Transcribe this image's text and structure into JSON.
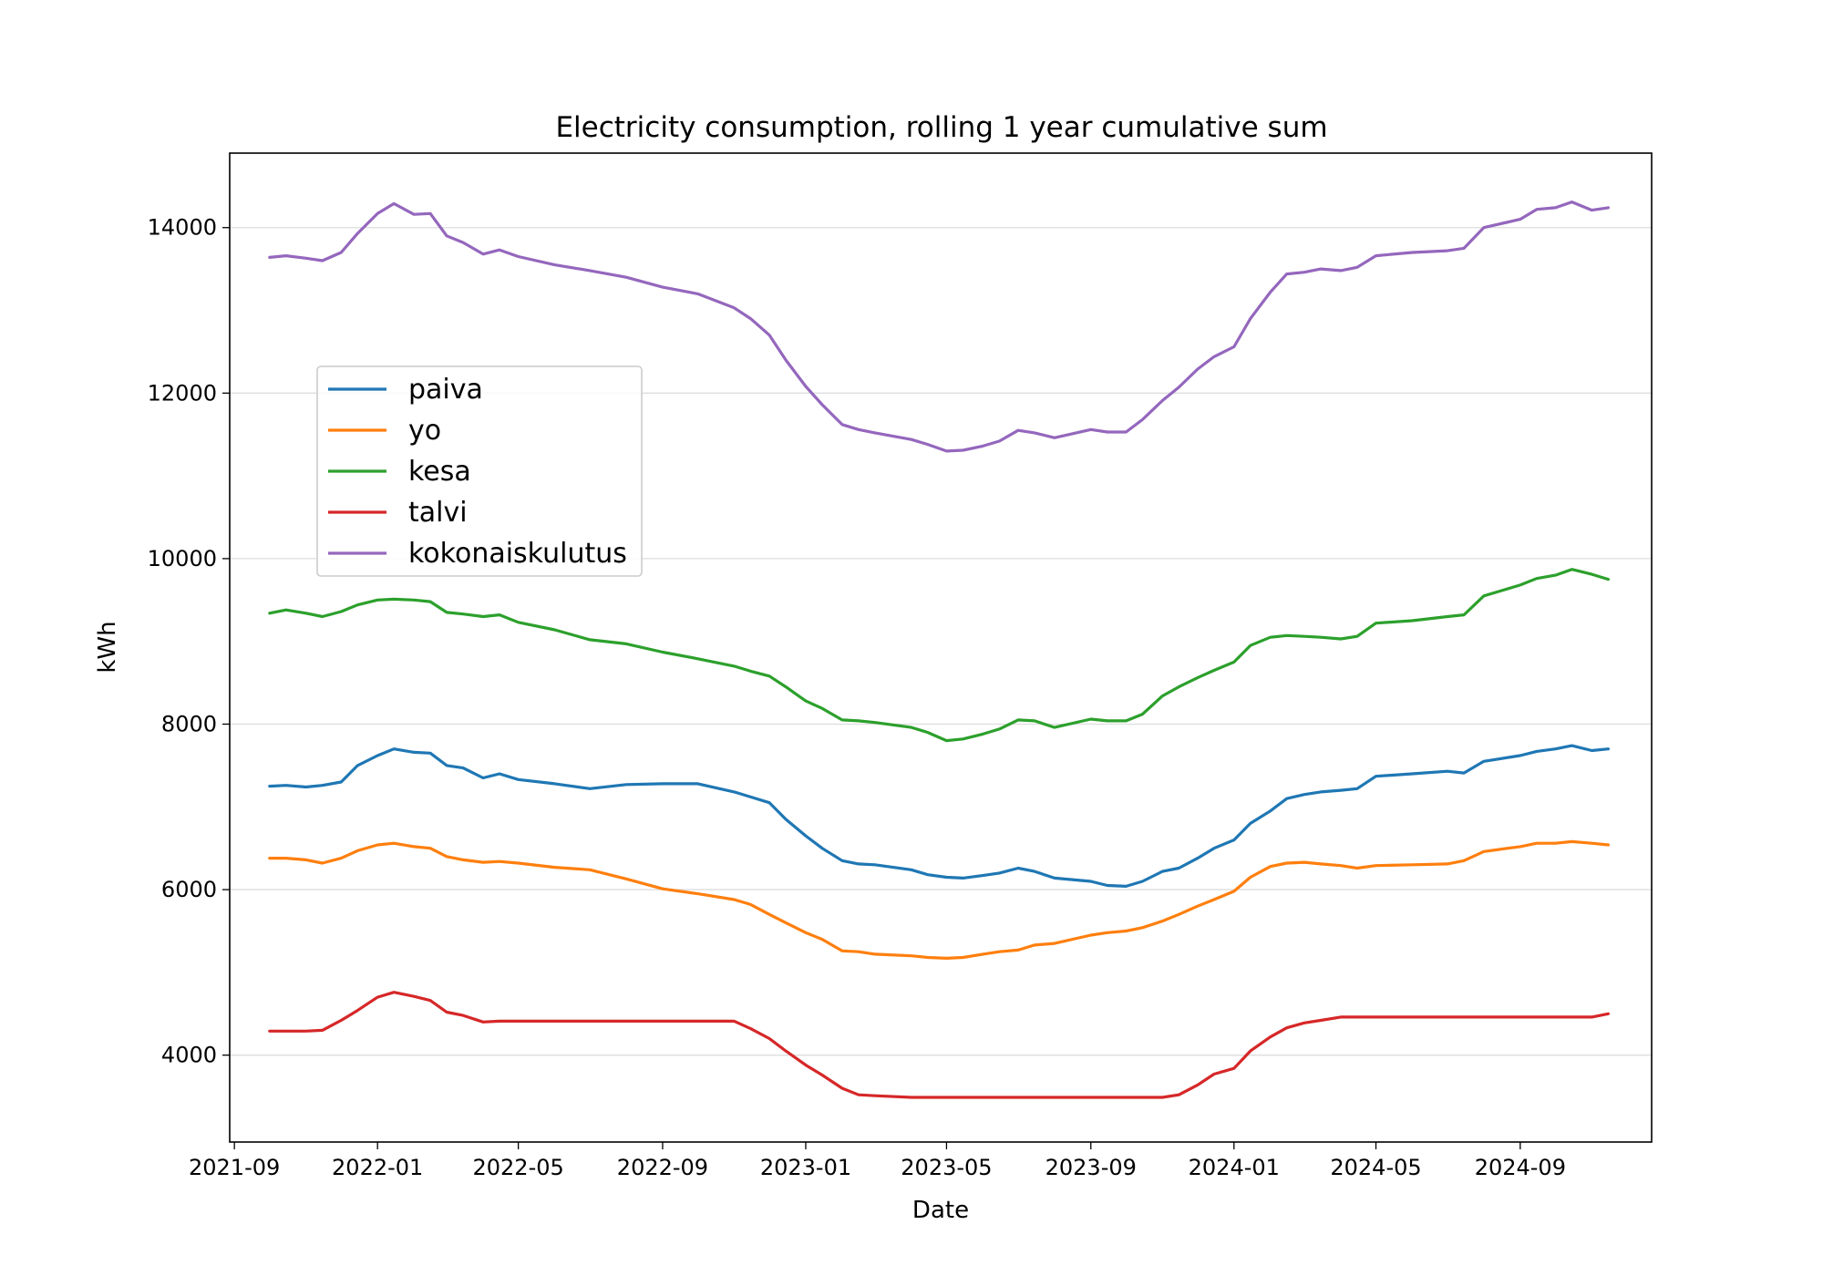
{
  "chart_data": {
    "type": "line",
    "title": "Electricity consumption, rolling 1 year cumulative sum",
    "xlabel": "Date",
    "ylabel": "kWh",
    "x_axis_type": "date",
    "xlim": [
      "2021-08-28",
      "2024-12-22"
    ],
    "ylim": [
      2950,
      14900
    ],
    "x_ticks": [
      "2021-09",
      "2022-01",
      "2022-05",
      "2022-09",
      "2023-01",
      "2023-05",
      "2023-09",
      "2024-01",
      "2024-05",
      "2024-09"
    ],
    "y_ticks": [
      4000,
      6000,
      8000,
      10000,
      12000,
      14000
    ],
    "grid": "horizontal",
    "legend_position": "center-left",
    "x": [
      "2021-10-01",
      "2021-10-15",
      "2021-11-01",
      "2021-11-15",
      "2021-12-01",
      "2021-12-15",
      "2022-01-01",
      "2022-01-15",
      "2022-02-01",
      "2022-02-15",
      "2022-03-01",
      "2022-03-15",
      "2022-04-01",
      "2022-04-15",
      "2022-05-01",
      "2022-06-01",
      "2022-07-01",
      "2022-08-01",
      "2022-09-01",
      "2022-10-01",
      "2022-11-01",
      "2022-11-15",
      "2022-12-01",
      "2022-12-15",
      "2023-01-01",
      "2023-01-15",
      "2023-02-01",
      "2023-02-15",
      "2023-03-01",
      "2023-04-01",
      "2023-04-15",
      "2023-05-01",
      "2023-05-15",
      "2023-06-01",
      "2023-06-15",
      "2023-07-01",
      "2023-07-15",
      "2023-08-01",
      "2023-09-01",
      "2023-09-15",
      "2023-10-01",
      "2023-10-15",
      "2023-11-01",
      "2023-11-15",
      "2023-12-01",
      "2023-12-15",
      "2024-01-01",
      "2024-01-15",
      "2024-02-01",
      "2024-02-15",
      "2024-03-01",
      "2024-03-15",
      "2024-04-01",
      "2024-04-15",
      "2024-05-01",
      "2024-06-01",
      "2024-07-01",
      "2024-07-15",
      "2024-08-01",
      "2024-09-01",
      "2024-09-15",
      "2024-10-01",
      "2024-10-15",
      "2024-11-01",
      "2024-11-15"
    ],
    "series": [
      {
        "name": "paiva",
        "color": "#1f77b4",
        "values": [
          7250,
          7260,
          7240,
          7260,
          7300,
          7500,
          7620,
          7700,
          7660,
          7650,
          7500,
          7470,
          7350,
          7400,
          7330,
          7280,
          7220,
          7270,
          7280,
          7280,
          7180,
          7120,
          7050,
          6850,
          6650,
          6500,
          6350,
          6310,
          6300,
          6240,
          6180,
          6150,
          6140,
          6170,
          6200,
          6260,
          6220,
          6140,
          6100,
          6050,
          6040,
          6100,
          6220,
          6260,
          6380,
          6500,
          6600,
          6800,
          6950,
          7100,
          7150,
          7180,
          7200,
          7220,
          7370,
          7400,
          7430,
          7410,
          7550,
          7620,
          7670,
          7700,
          7740,
          7680,
          7700
        ]
      },
      {
        "name": "yo",
        "color": "#ff7f0e",
        "values": [
          6380,
          6380,
          6360,
          6320,
          6380,
          6470,
          6540,
          6560,
          6520,
          6500,
          6400,
          6360,
          6330,
          6340,
          6320,
          6270,
          6240,
          6130,
          6010,
          5950,
          5880,
          5820,
          5700,
          5600,
          5480,
          5400,
          5260,
          5250,
          5220,
          5200,
          5180,
          5170,
          5180,
          5220,
          5250,
          5270,
          5330,
          5350,
          5450,
          5480,
          5500,
          5540,
          5620,
          5700,
          5800,
          5880,
          5980,
          6150,
          6280,
          6320,
          6330,
          6310,
          6290,
          6260,
          6290,
          6300,
          6310,
          6350,
          6460,
          6520,
          6560,
          6560,
          6580,
          6560,
          6540
        ]
      },
      {
        "name": "kesa",
        "color": "#2ca02c",
        "values": [
          9340,
          9380,
          9340,
          9300,
          9360,
          9440,
          9500,
          9510,
          9500,
          9480,
          9350,
          9330,
          9300,
          9320,
          9230,
          9140,
          9020,
          8970,
          8870,
          8790,
          8700,
          8640,
          8580,
          8450,
          8280,
          8190,
          8050,
          8040,
          8020,
          7960,
          7900,
          7800,
          7820,
          7880,
          7940,
          8050,
          8040,
          7960,
          8060,
          8040,
          8040,
          8120,
          8340,
          8450,
          8560,
          8650,
          8750,
          8950,
          9050,
          9070,
          9060,
          9050,
          9030,
          9060,
          9220,
          9250,
          9300,
          9320,
          9550,
          9680,
          9760,
          9800,
          9870,
          9810,
          9750
        ]
      },
      {
        "name": "talvi",
        "color": "#d62728",
        "values": [
          4290,
          4290,
          4290,
          4300,
          4420,
          4540,
          4700,
          4760,
          4710,
          4660,
          4520,
          4480,
          4400,
          4410,
          4410,
          4410,
          4410,
          4410,
          4410,
          4410,
          4410,
          4320,
          4200,
          4050,
          3880,
          3760,
          3600,
          3520,
          3510,
          3490,
          3490,
          3490,
          3490,
          3490,
          3490,
          3490,
          3490,
          3490,
          3490,
          3490,
          3490,
          3490,
          3490,
          3520,
          3640,
          3770,
          3840,
          4050,
          4220,
          4330,
          4390,
          4420,
          4460,
          4460,
          4460,
          4460,
          4460,
          4460,
          4460,
          4460,
          4460,
          4460,
          4460,
          4460,
          4500
        ]
      },
      {
        "name": "kokonaiskulutus",
        "color": "#9467bd",
        "values": [
          13640,
          13660,
          13630,
          13600,
          13700,
          13930,
          14170,
          14290,
          14160,
          14170,
          13900,
          13820,
          13680,
          13730,
          13650,
          13550,
          13480,
          13400,
          13280,
          13200,
          13030,
          12900,
          12700,
          12400,
          12080,
          11860,
          11620,
          11560,
          11520,
          11440,
          11380,
          11300,
          11310,
          11360,
          11420,
          11550,
          11520,
          11460,
          11560,
          11530,
          11530,
          11680,
          11910,
          12070,
          12290,
          12440,
          12560,
          12900,
          13220,
          13440,
          13460,
          13500,
          13480,
          13520,
          13660,
          13700,
          13720,
          13750,
          14000,
          14100,
          14220,
          14240,
          14310,
          14210,
          14240
        ]
      }
    ]
  }
}
